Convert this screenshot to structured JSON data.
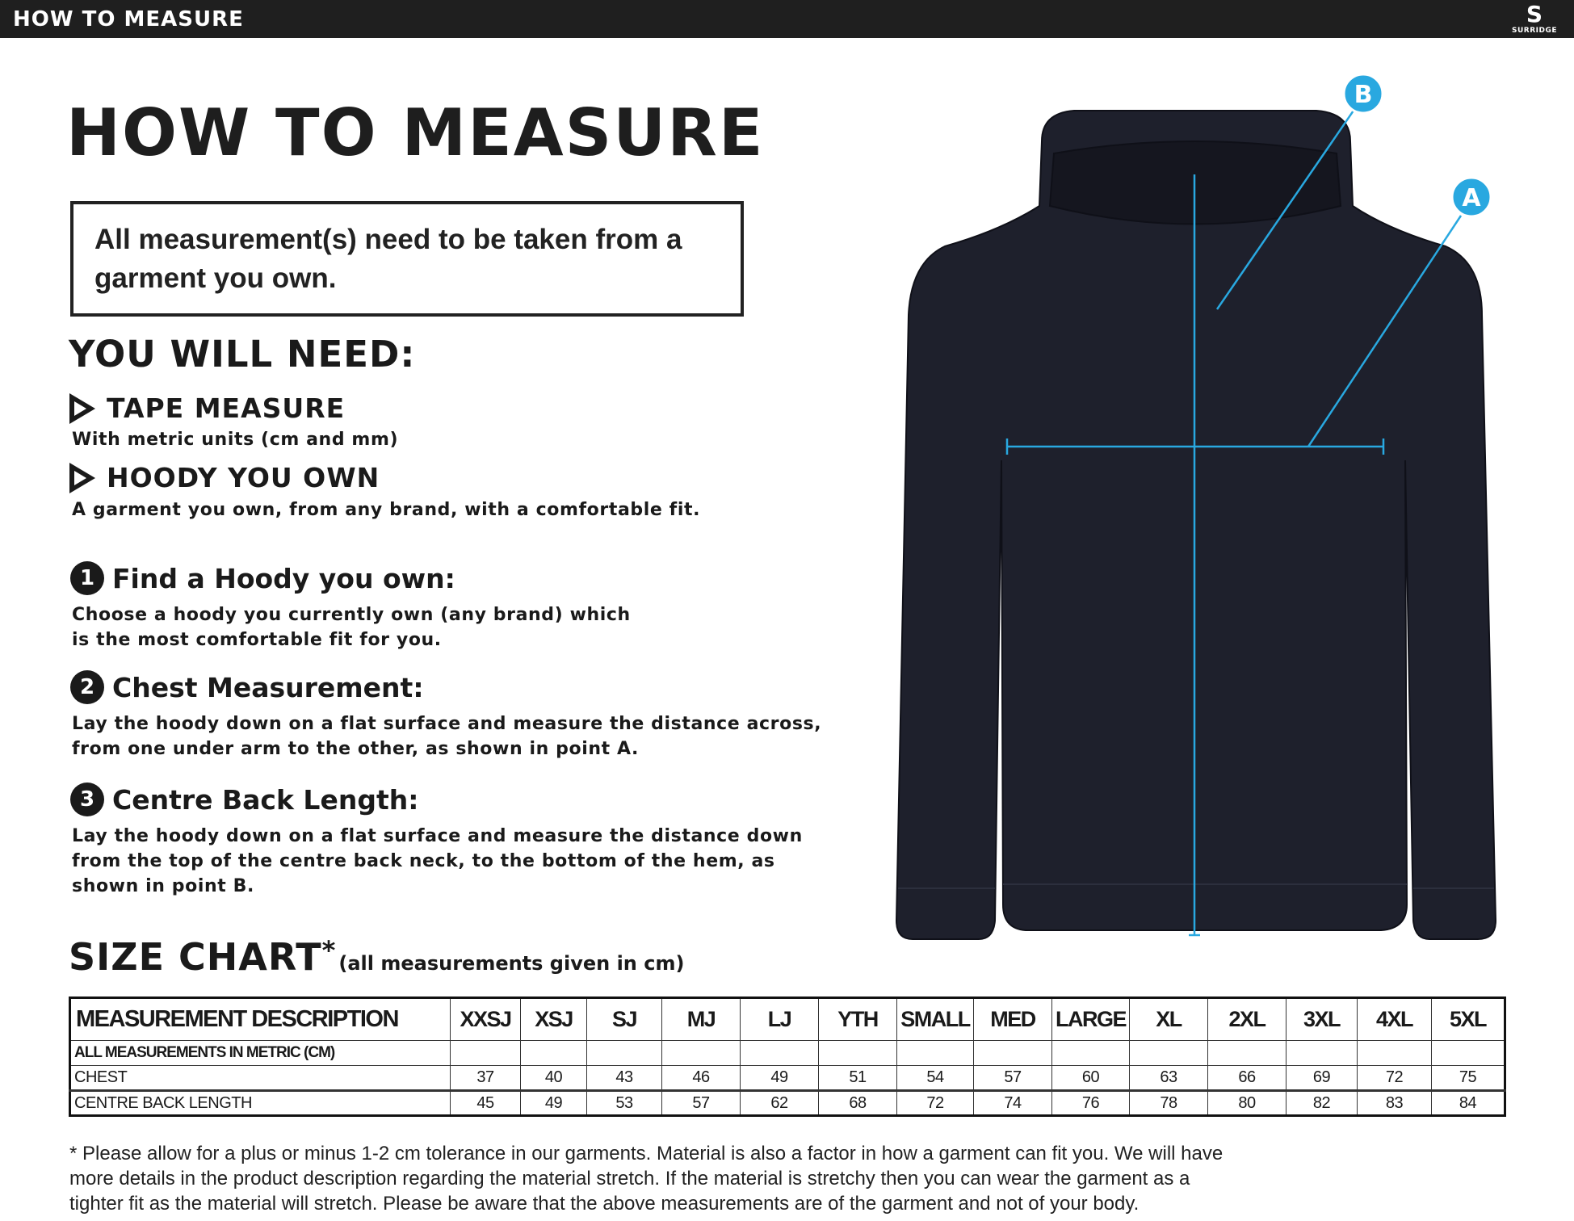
{
  "topbar": {
    "title": "HOW TO MEASURE",
    "logo_text": "SURRIDGE"
  },
  "page_title": "HOW TO MEASURE",
  "notice": "All measurement(s) need to be taken from a garment you own.",
  "you_will_need": {
    "heading": "YOU WILL NEED:",
    "items": [
      {
        "title": "TAPE MEASURE",
        "desc": "With metric units (cm and mm)"
      },
      {
        "title": "HOODY YOU OWN",
        "desc": "A garment you own, from any brand, with a comfortable fit."
      }
    ]
  },
  "steps": [
    {
      "num": "1",
      "title": "Find a Hoody you own:",
      "lines": [
        "Choose a hoody you currently own (any brand) which",
        "is the most comfortable fit for you."
      ]
    },
    {
      "num": "2",
      "title": "Chest Measurement:",
      "lines": [
        "Lay the hoody down on a flat surface and measure the distance across,",
        "from one under arm to the other, as shown in point A."
      ]
    },
    {
      "num": "3",
      "title": "Centre Back Length:",
      "lines": [
        "Lay the hoody down on a flat surface and measure the distance down",
        "from the top of the centre back neck, to the bottom of the hem, as",
        "shown in point B."
      ]
    }
  ],
  "diagram": {
    "label_a": "A",
    "label_b": "B",
    "accent": "#29a8e0",
    "garment_color": "#1e202c"
  },
  "size_chart": {
    "title": "SIZE CHART",
    "asterisk": "*",
    "note": "(all measurements given in cm)",
    "header": "MEASUREMENT DESCRIPTION",
    "sizes": [
      "XXSJ",
      "XSJ",
      "SJ",
      "MJ",
      "LJ",
      "YTH",
      "SMALL",
      "MED",
      "LARGE",
      "XL",
      "2XL",
      "3XL",
      "4XL",
      "5XL"
    ],
    "subheader": "ALL MEASUREMENTS IN METRIC (CM)",
    "rows": [
      {
        "label": "CHEST",
        "values": [
          "37",
          "40",
          "43",
          "46",
          "49",
          "51",
          "54",
          "57",
          "60",
          "63",
          "66",
          "69",
          "72",
          "75"
        ]
      },
      {
        "label": "CENTRE BACK LENGTH",
        "values": [
          "45",
          "49",
          "53",
          "57",
          "62",
          "68",
          "72",
          "74",
          "76",
          "78",
          "80",
          "82",
          "83",
          "84"
        ]
      }
    ]
  },
  "footer": [
    "* Please allow for a plus or minus 1-2 cm tolerance in our garments. Material is also a factor in how a garment can fit you. We will have",
    "more details in the product description regarding the material stretch.  If the material is stretchy then you can wear the garment as a",
    "tighter fit as the material will stretch.  Please be aware that the above measurements are of the garment and not of your body."
  ]
}
